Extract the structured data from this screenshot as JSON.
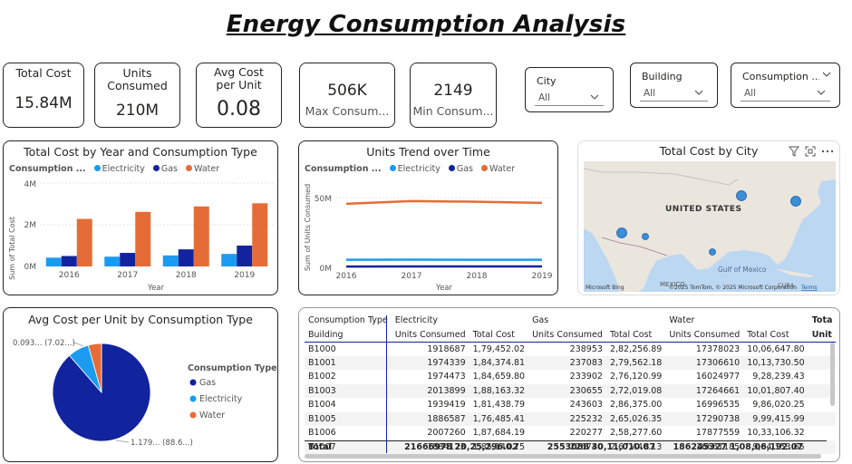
{
  "title": "Energy Consumption Analysis",
  "kpis": {
    "total_cost": {
      "label": "Total Cost",
      "value": "15.84M"
    },
    "units_consumed": {
      "label": "Units Consumed",
      "value": "210M"
    },
    "avg_cost": {
      "label": "Avg Cost per Unit",
      "value": "0.08"
    },
    "max_consumption": {
      "label": "Max Consum...",
      "value": "506K"
    },
    "min_consumption": {
      "label": "Min Consum...",
      "value": "2149"
    }
  },
  "slicers": {
    "city": {
      "title": "City",
      "value": "All"
    },
    "building": {
      "title": "Building",
      "value": "All"
    },
    "consumption": {
      "title": "Consumption ...",
      "value": "All"
    }
  },
  "colors": {
    "electricity": "#1a9bf0",
    "gas": "#12239e",
    "water": "#e66c37"
  },
  "bar_chart": {
    "title": "Total Cost by Year and Consumption Type",
    "legend_title": "Consumption ...",
    "legend": [
      "Electricity",
      "Gas",
      "Water"
    ],
    "ylabel": "Sum of Total Cost",
    "xlabel": "Year",
    "yticks": [
      "0M",
      "2M",
      "4M"
    ]
  },
  "line_chart": {
    "title": "Units Trend over Time",
    "legend_title": "Consumption ...",
    "legend": [
      "Electricity",
      "Gas",
      "Water"
    ],
    "ylabel": "Sum of Units Consumed",
    "xlabel": "Year",
    "yticks": [
      "0M",
      "50M"
    ]
  },
  "map": {
    "title": "Total Cost by City",
    "country_label": "UNITED STATES",
    "gulf_label": "Gulf of Mexico",
    "mexico_label": "MEXICO",
    "cuba_label": "CUBA",
    "attribution": "©2025 TomTom, © 2025 Microsoft Corporation",
    "terms": "Terms",
    "bing": "Microsoft Bing"
  },
  "pie": {
    "title": "Avg Cost per Unit by Consumption Type",
    "legend_title": "Consumption Type",
    "legend": [
      "Gas",
      "Electricity",
      "Water"
    ],
    "label_small": "0.093... (7.02...)",
    "label_large": "1.179... (88.6...)"
  },
  "matrix": {
    "row_header_1": "Consumption Type",
    "row_header_2": "Building",
    "groups": [
      "Electricity",
      "Gas",
      "Water",
      "Tota"
    ],
    "sub_units": "Units Consumed",
    "sub_cost": "Total Cost",
    "sub_last": "Unit",
    "rows": [
      [
        "B1000",
        "1918687",
        "1,79,452.02",
        "238953",
        "2,82,256.89",
        "17378023",
        "10,06,647.80"
      ],
      [
        "B1001",
        "1974339",
        "1,84,374.81",
        "237083",
        "2,79,562.18",
        "17306610",
        "10,13,730.50"
      ],
      [
        "B1002",
        "1974473",
        "1,84,659.80",
        "233902",
        "2,76,120.99",
        "16024977",
        "9,28,239.43"
      ],
      [
        "B1003",
        "2013899",
        "1,88,163.32",
        "230655",
        "2,72,019.08",
        "17264661",
        "10,01,807.40"
      ],
      [
        "B1004",
        "1939419",
        "1,81,438.79",
        "243603",
        "2,86,375.00",
        "16996535",
        "9,86,020.25"
      ],
      [
        "B1005",
        "1886587",
        "1,76,485.41",
        "225232",
        "2,65,026.35",
        "17290738",
        "9,99,415.99"
      ],
      [
        "B1006",
        "2007260",
        "1,87,684.19",
        "220277",
        "2,58,277.60",
        "17877559",
        "10,33,106.32"
      ],
      [
        "B1007",
        "1884173",
        "1,85,140.75",
        "226740",
        "2,67,440.13",
        "16661185",
        "9,84,153.65"
      ]
    ],
    "total": [
      "Total",
      "21666978",
      "20,25,296.02",
      "2553088",
      "30,11,010.87",
      "186245327",
      "1,08,06,192.07"
    ]
  },
  "chart_data": [
    {
      "type": "bar",
      "title": "Total Cost by Year and Consumption Type",
      "xlabel": "Year",
      "ylabel": "Sum of Total Cost",
      "categories": [
        "2016",
        "2017",
        "2018",
        "2019"
      ],
      "ylim": [
        0,
        4000000
      ],
      "series": [
        {
          "name": "Electricity",
          "values": [
            420000,
            470000,
            530000,
            600000
          ]
        },
        {
          "name": "Gas",
          "values": [
            500000,
            650000,
            820000,
            1000000
          ]
        },
        {
          "name": "Water",
          "values": [
            2280000,
            2620000,
            2880000,
            3030000
          ]
        }
      ]
    },
    {
      "type": "line",
      "title": "Units Trend over Time",
      "xlabel": "Year",
      "ylabel": "Sum of Units Consumed",
      "x": [
        "2016",
        "2017",
        "2018",
        "2019"
      ],
      "ylim": [
        0,
        55000000
      ],
      "series": [
        {
          "name": "Electricity",
          "values": [
            5400000,
            5500000,
            5400000,
            5400000
          ]
        },
        {
          "name": "Gas",
          "values": [
            600000,
            650000,
            650000,
            650000
          ]
        },
        {
          "name": "Water",
          "values": [
            45500000,
            47500000,
            47000000,
            46200000
          ]
        }
      ]
    },
    {
      "type": "pie",
      "title": "Avg Cost per Unit by Consumption Type",
      "categories": [
        "Gas",
        "Electricity",
        "Water"
      ],
      "values": [
        88.6,
        7.02,
        4.38
      ]
    }
  ]
}
